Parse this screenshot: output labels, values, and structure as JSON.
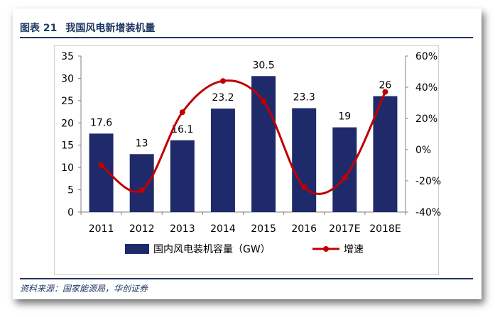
{
  "header": {
    "label": "图表 21",
    "title": "我国风电新增装机量"
  },
  "source": "资料来源：国家能源局，华创证券",
  "colors": {
    "bar": "#1f2a6b",
    "line": "#c00000",
    "heading": "#1f3864"
  },
  "chart_data": {
    "type": "bar",
    "categories": [
      "2011",
      "2012",
      "2013",
      "2014",
      "2015",
      "2016",
      "2017E",
      "2018E"
    ],
    "series": [
      {
        "name": "国内风电装机容量（GW）",
        "type": "bar",
        "axis": "left",
        "values": [
          17.6,
          13,
          16.1,
          23.2,
          30.5,
          23.3,
          19,
          26
        ]
      },
      {
        "name": "增速",
        "type": "line",
        "axis": "right",
        "smooth": true,
        "values": [
          -10,
          -26,
          24,
          44,
          31,
          -24,
          -18,
          37
        ]
      }
    ],
    "left_axis": {
      "min": 0,
      "max": 35,
      "ticks": [
        "0",
        "5",
        "10",
        "15",
        "20",
        "25",
        "30",
        "35"
      ]
    },
    "right_axis": {
      "min": -40,
      "max": 60,
      "ticks": [
        "-40%",
        "-20%",
        "0%",
        "20%",
        "40%",
        "60%"
      ]
    },
    "data_labels": [
      "17.6",
      "13",
      "16.1",
      "23.2",
      "30.5",
      "23.3",
      "19",
      "26"
    ],
    "legend_position": "bottom",
    "grid": false
  }
}
